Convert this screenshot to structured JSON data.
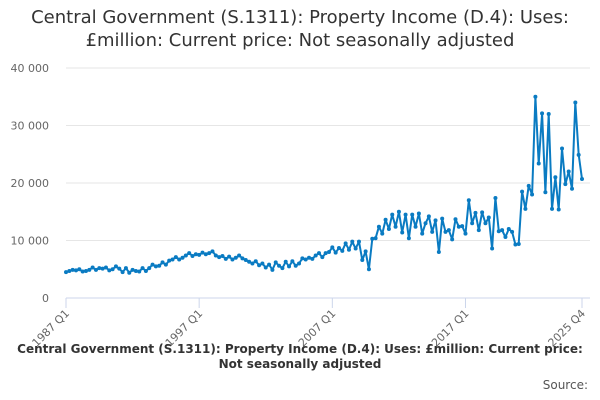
{
  "chart_data": {
    "type": "line",
    "title": "Central Government (S.1311): Property Income (D.4): Uses: £million: Current price: Not seasonally adjusted",
    "footer_title": "Central Government (S.1311): Property Income (D.4): Uses: £million: Current price: Not seasonally adjusted",
    "source_label": "Source:",
    "xlabel": "",
    "ylabel": "",
    "x_start": "1987 Q1",
    "x_end": "2025 Q4",
    "x_ticks": [
      {
        "index": 0,
        "label": "1987 Q1"
      },
      {
        "index": 40,
        "label": "1997 Q1"
      },
      {
        "index": 80,
        "label": "2007 Q1"
      },
      {
        "index": 120,
        "label": "2017 Q1"
      },
      {
        "index": 155,
        "label": "2025 Q4"
      }
    ],
    "y_ticks": [
      {
        "value": 0,
        "label": "0"
      },
      {
        "value": 10000,
        "label": "10 000"
      },
      {
        "value": 20000,
        "label": "20 000"
      },
      {
        "value": 30000,
        "label": "30 000"
      },
      {
        "value": 40000,
        "label": "40 000"
      }
    ],
    "ylim": [
      0,
      40000
    ],
    "grid": true,
    "color": "#0a7bc2",
    "values": [
      4500,
      4700,
      4900,
      4800,
      5000,
      4600,
      4700,
      4900,
      5300,
      4900,
      5200,
      5100,
      5300,
      4800,
      5000,
      5500,
      5100,
      4500,
      5200,
      4400,
      4900,
      4700,
      4600,
      5200,
      4700,
      5200,
      5800,
      5500,
      5600,
      6200,
      5800,
      6500,
      6700,
      7100,
      6700,
      7000,
      7400,
      7800,
      7300,
      7600,
      7500,
      7900,
      7600,
      7800,
      8100,
      7400,
      7100,
      7300,
      6800,
      7200,
      6700,
      7000,
      7400,
      6900,
      6600,
      6300,
      6000,
      6400,
      5700,
      6000,
      5300,
      5800,
      4900,
      6200,
      5600,
      5200,
      6300,
      5500,
      6400,
      5600,
      6000,
      6900,
      6700,
      7000,
      6800,
      7400,
      7800,
      7100,
      7800,
      8000,
      8800,
      7900,
      8700,
      8200,
      9500,
      8400,
      9800,
      8600,
      9800,
      6600,
      8100,
      5000,
      10300,
      10400,
      12400,
      11200,
      13600,
      12000,
      14500,
      12400,
      15000,
      11400,
      14500,
      10400,
      14500,
      12400,
      14700,
      11200,
      13000,
      14200,
      11500,
      13500,
      8000,
      13800,
      11500,
      11800,
      10200,
      13700,
      12400,
      12500,
      11200,
      17000,
      13000,
      14800,
      11800,
      14900,
      13000,
      14000,
      8600,
      17400,
      11600,
      11800,
      10600,
      12000,
      11500,
      9300,
      9400,
      18500,
      15500,
      19500,
      18000,
      35000,
      23400,
      32100,
      18400,
      32000,
      15500,
      21000,
      15400,
      26000,
      19800,
      22000,
      19000,
      34000,
      24900,
      20700
    ]
  }
}
